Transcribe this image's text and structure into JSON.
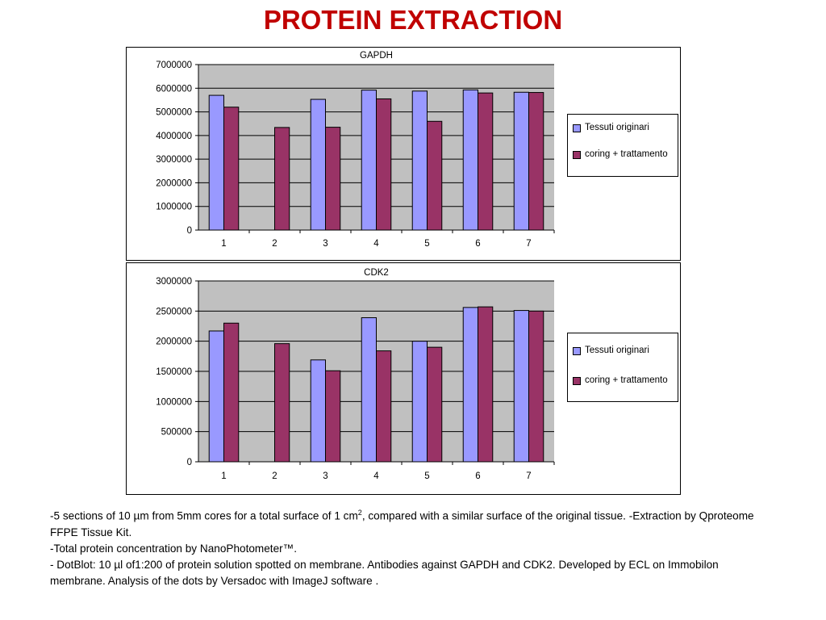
{
  "title": "PROTEIN EXTRACTION",
  "colors": {
    "title": "#c00000",
    "plot_bg": "#c0c0c0",
    "series_1": "#9999ff",
    "series_2": "#993366"
  },
  "chart_data": [
    {
      "type": "bar",
      "title": "GAPDH",
      "categories": [
        "1",
        "2",
        "3",
        "4",
        "5",
        "6",
        "7"
      ],
      "series": [
        {
          "name": "Tessuti originari",
          "values": [
            5700000,
            null,
            5530000,
            5920000,
            5880000,
            5930000,
            5830000
          ]
        },
        {
          "name": "coring + trattamento",
          "values": [
            5200000,
            4340000,
            4350000,
            5550000,
            4600000,
            5800000,
            5820000
          ]
        }
      ],
      "ylim": [
        0,
        7000000
      ],
      "yticks": [
        "0",
        "1000000",
        "2000000",
        "3000000",
        "4000000",
        "5000000",
        "6000000",
        "7000000"
      ],
      "grid": true,
      "legend": "right"
    },
    {
      "type": "bar",
      "title": "CDK2",
      "categories": [
        "1",
        "2",
        "3",
        "4",
        "5",
        "6",
        "7"
      ],
      "series": [
        {
          "name": "Tessuti originari",
          "values": [
            2170000,
            null,
            1690000,
            2390000,
            2000000,
            2560000,
            2510000
          ]
        },
        {
          "name": "coring + trattamento",
          "values": [
            2300000,
            1960000,
            1510000,
            1840000,
            1900000,
            2570000,
            2500000
          ]
        }
      ],
      "ylim": [
        0,
        3000000
      ],
      "yticks": [
        "0",
        "500000",
        "1000000",
        "1500000",
        "2000000",
        "2500000",
        "3000000"
      ],
      "grid": true,
      "legend": "right"
    }
  ],
  "body": {
    "line1_a": "-5 sections of 10 µm from 5mm cores for a total surface of 1 cm",
    "line1_sup": "2",
    "line1_b": ", compared with a similar surface of the original tissue. -Extraction by Qproteome FFPE Tissue Kit.",
    "line2": "-Total protein concentration  by NanoPhotometer™.",
    "line3": "- DotBlot: 10 µl of1:200 of protein solution spotted on membrane. Antibodies against GAPDH and CDK2. Developed by ECL on Immobilon membrane. Analysis of the dots by Versadoc with ImageJ software ."
  }
}
